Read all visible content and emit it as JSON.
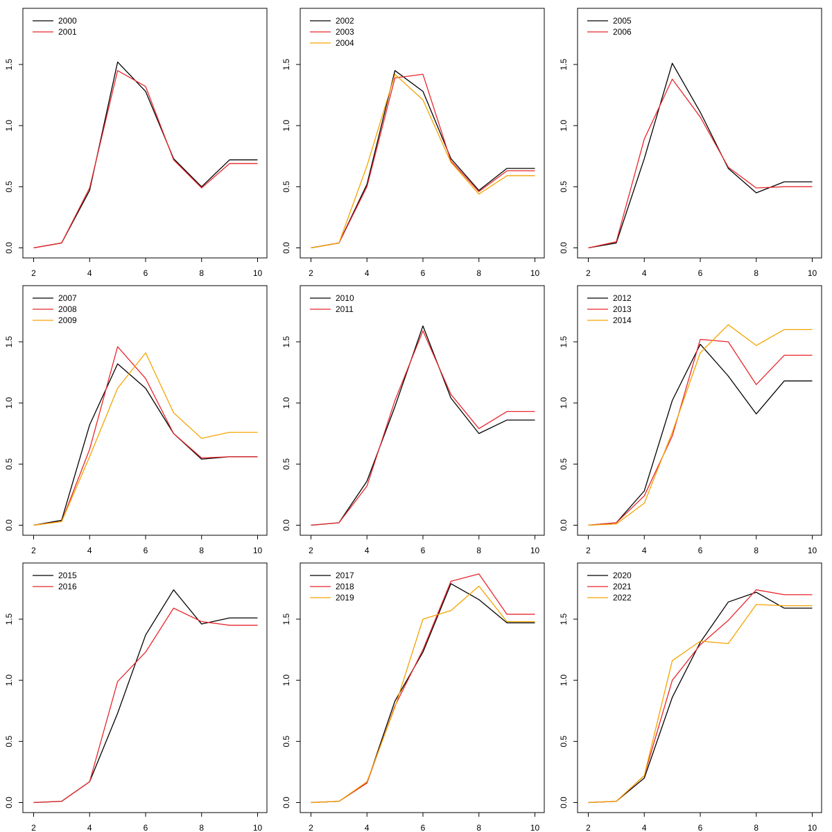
{
  "colors": {
    "black": "#000000",
    "red": "#e8262b",
    "orange": "#f4a300"
  },
  "chart_data": [
    {
      "type": "line",
      "x": [
        2,
        3,
        4,
        5,
        6,
        7,
        8,
        9,
        10
      ],
      "xlim": [
        2,
        10
      ],
      "ylim": [
        0,
        1.9
      ],
      "xticks": [
        "2",
        "4",
        "6",
        "8",
        "10"
      ],
      "yticks": [
        "0.0",
        "0.5",
        "1.0",
        "1.5"
      ],
      "grid": false,
      "legend_position": "top-left",
      "series": [
        {
          "name": "2000",
          "color": "#000000",
          "values": [
            0,
            0.04,
            0.47,
            1.52,
            1.28,
            0.73,
            0.5,
            0.72,
            0.72
          ]
        },
        {
          "name": "2001",
          "color": "#e8262b",
          "values": [
            0,
            0.04,
            0.49,
            1.45,
            1.32,
            0.72,
            0.49,
            0.69,
            0.69
          ]
        }
      ]
    },
    {
      "type": "line",
      "x": [
        2,
        3,
        4,
        5,
        6,
        7,
        8,
        9,
        10
      ],
      "xlim": [
        2,
        10
      ],
      "ylim": [
        0,
        1.9
      ],
      "xticks": [
        "2",
        "4",
        "6",
        "8",
        "10"
      ],
      "yticks": [
        "0.0",
        "0.5",
        "1.0",
        "1.5"
      ],
      "grid": false,
      "legend_position": "top-left",
      "series": [
        {
          "name": "2002",
          "color": "#000000",
          "values": [
            0,
            0.04,
            0.52,
            1.45,
            1.28,
            0.73,
            0.47,
            0.65,
            0.65
          ]
        },
        {
          "name": "2003",
          "color": "#e8262b",
          "values": [
            0,
            0.04,
            0.5,
            1.39,
            1.42,
            0.71,
            0.46,
            0.63,
            0.63
          ]
        },
        {
          "name": "2004",
          "color": "#f4a300",
          "values": [
            0,
            0.04,
            0.67,
            1.42,
            1.21,
            0.7,
            0.44,
            0.59,
            0.59
          ]
        }
      ]
    },
    {
      "type": "line",
      "x": [
        2,
        3,
        4,
        5,
        6,
        7,
        8,
        9,
        10
      ],
      "xlim": [
        2,
        10
      ],
      "ylim": [
        0,
        1.9
      ],
      "xticks": [
        "2",
        "4",
        "6",
        "8",
        "10"
      ],
      "yticks": [
        "0.0",
        "0.5",
        "1.0",
        "1.5"
      ],
      "grid": false,
      "legend_position": "top-left",
      "series": [
        {
          "name": "2005",
          "color": "#000000",
          "values": [
            0,
            0.04,
            0.73,
            1.51,
            1.11,
            0.65,
            0.45,
            0.54,
            0.54
          ]
        },
        {
          "name": "2006",
          "color": "#e8262b",
          "values": [
            0,
            0.05,
            0.89,
            1.38,
            1.07,
            0.66,
            0.49,
            0.5,
            0.5
          ]
        }
      ]
    },
    {
      "type": "line",
      "x": [
        2,
        3,
        4,
        5,
        6,
        7,
        8,
        9,
        10
      ],
      "xlim": [
        2,
        10
      ],
      "ylim": [
        0,
        1.9
      ],
      "xticks": [
        "2",
        "4",
        "6",
        "8",
        "10"
      ],
      "yticks": [
        "0.0",
        "0.5",
        "1.0",
        "1.5"
      ],
      "grid": false,
      "legend_position": "top-left",
      "series": [
        {
          "name": "2007",
          "color": "#000000",
          "values": [
            0,
            0.04,
            0.82,
            1.32,
            1.12,
            0.75,
            0.54,
            0.56,
            0.56
          ]
        },
        {
          "name": "2008",
          "color": "#e8262b",
          "values": [
            0,
            0.03,
            0.62,
            1.46,
            1.2,
            0.75,
            0.55,
            0.56,
            0.56
          ]
        },
        {
          "name": "2009",
          "color": "#f4a300",
          "values": [
            0,
            0.03,
            0.56,
            1.12,
            1.41,
            0.92,
            0.71,
            0.76,
            0.76
          ]
        }
      ]
    },
    {
      "type": "line",
      "x": [
        2,
        3,
        4,
        5,
        6,
        7,
        8,
        9,
        10
      ],
      "xlim": [
        2,
        10
      ],
      "ylim": [
        0,
        1.9
      ],
      "xticks": [
        "2",
        "4",
        "6",
        "8",
        "10"
      ],
      "yticks": [
        "0.0",
        "0.5",
        "1.0",
        "1.5"
      ],
      "grid": false,
      "legend_position": "top-left",
      "series": [
        {
          "name": "2010",
          "color": "#000000",
          "values": [
            0,
            0.02,
            0.36,
            0.97,
            1.63,
            1.04,
            0.75,
            0.86,
            0.86
          ]
        },
        {
          "name": "2011",
          "color": "#e8262b",
          "values": [
            0,
            0.02,
            0.32,
            1.02,
            1.59,
            1.07,
            0.79,
            0.93,
            0.93
          ]
        }
      ]
    },
    {
      "type": "line",
      "x": [
        2,
        3,
        4,
        5,
        6,
        7,
        8,
        9,
        10
      ],
      "xlim": [
        2,
        10
      ],
      "ylim": [
        0,
        1.9
      ],
      "xticks": [
        "2",
        "4",
        "6",
        "8",
        "10"
      ],
      "yticks": [
        "0.0",
        "0.5",
        "1.0",
        "1.5"
      ],
      "grid": false,
      "legend_position": "top-left",
      "series": [
        {
          "name": "2012",
          "color": "#000000",
          "values": [
            0,
            0.02,
            0.28,
            1.02,
            1.48,
            1.22,
            0.91,
            1.18,
            1.18
          ]
        },
        {
          "name": "2013",
          "color": "#e8262b",
          "values": [
            0,
            0.02,
            0.24,
            0.73,
            1.52,
            1.5,
            1.15,
            1.39,
            1.39
          ]
        },
        {
          "name": "2014",
          "color": "#f4a300",
          "values": [
            0,
            0.01,
            0.18,
            0.76,
            1.41,
            1.64,
            1.47,
            1.6,
            1.6
          ]
        }
      ]
    },
    {
      "type": "line",
      "x": [
        2,
        3,
        4,
        5,
        6,
        7,
        8,
        9,
        10
      ],
      "xlim": [
        2,
        10
      ],
      "ylim": [
        0,
        1.9
      ],
      "xticks": [
        "2",
        "4",
        "6",
        "8",
        "10"
      ],
      "yticks": [
        "0.0",
        "0.5",
        "1.0",
        "1.5"
      ],
      "grid": false,
      "legend_position": "top-left",
      "series": [
        {
          "name": "2015",
          "color": "#000000",
          "values": [
            0,
            0.01,
            0.17,
            0.73,
            1.37,
            1.74,
            1.46,
            1.51,
            1.51
          ]
        },
        {
          "name": "2016",
          "color": "#e8262b",
          "values": [
            0,
            0.01,
            0.17,
            0.99,
            1.23,
            1.59,
            1.48,
            1.45,
            1.45
          ]
        }
      ]
    },
    {
      "type": "line",
      "x": [
        2,
        3,
        4,
        5,
        6,
        7,
        8,
        9,
        10
      ],
      "xlim": [
        2,
        10
      ],
      "ylim": [
        0,
        1.9
      ],
      "xticks": [
        "2",
        "4",
        "6",
        "8",
        "10"
      ],
      "yticks": [
        "0.0",
        "0.5",
        "1.0",
        "1.5"
      ],
      "grid": false,
      "legend_position": "top-left",
      "series": [
        {
          "name": "2017",
          "color": "#000000",
          "values": [
            0,
            0.01,
            0.16,
            0.83,
            1.23,
            1.79,
            1.66,
            1.47,
            1.47
          ]
        },
        {
          "name": "2018",
          "color": "#e8262b",
          "values": [
            0,
            0.01,
            0.16,
            0.79,
            1.25,
            1.81,
            1.87,
            1.54,
            1.54
          ]
        },
        {
          "name": "2019",
          "color": "#f4a300",
          "values": [
            0,
            0.01,
            0.17,
            0.78,
            1.5,
            1.57,
            1.77,
            1.48,
            1.48
          ]
        }
      ]
    },
    {
      "type": "line",
      "x": [
        2,
        3,
        4,
        5,
        6,
        7,
        8,
        9,
        10
      ],
      "xlim": [
        2,
        10
      ],
      "ylim": [
        0,
        1.9
      ],
      "xticks": [
        "2",
        "4",
        "6",
        "8",
        "10"
      ],
      "yticks": [
        "0.0",
        "0.5",
        "1.0",
        "1.5"
      ],
      "grid": false,
      "legend_position": "top-left",
      "series": [
        {
          "name": "2020",
          "color": "#000000",
          "values": [
            0,
            0.01,
            0.2,
            0.86,
            1.31,
            1.64,
            1.72,
            1.59,
            1.59
          ]
        },
        {
          "name": "2021",
          "color": "#e8262b",
          "values": [
            0,
            0.01,
            0.22,
            1.0,
            1.29,
            1.49,
            1.74,
            1.7,
            1.7
          ]
        },
        {
          "name": "2022",
          "color": "#f4a300",
          "values": [
            0,
            0.01,
            0.22,
            1.16,
            1.32,
            1.3,
            1.62,
            1.61,
            1.61
          ]
        }
      ]
    }
  ]
}
